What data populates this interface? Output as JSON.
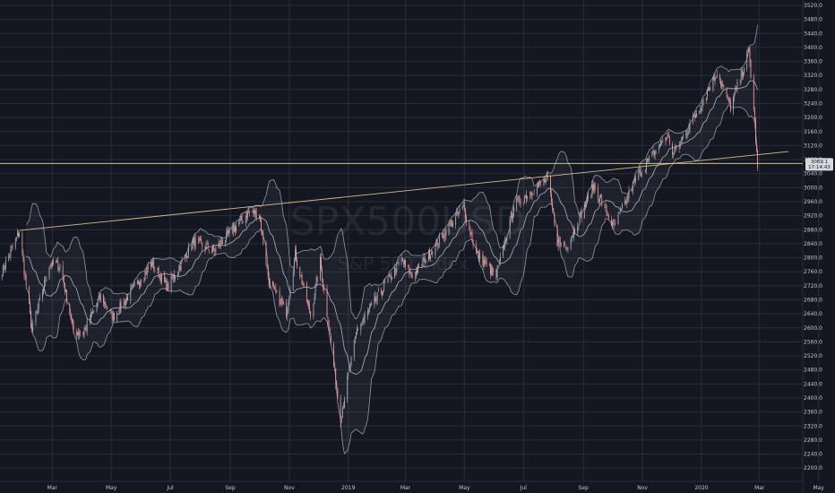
{
  "chart_data": {
    "type": "candlestick",
    "symbol_watermark": "SPX500USD",
    "description_watermark": "S&P 500 Index",
    "colors": {
      "background": "#131722",
      "grid": "#2a2e39",
      "candle_up": "#b0b3bb",
      "candle_down": "#ef9a9a",
      "bollinger": "#c8cad2",
      "trendline": "#d8b98a",
      "horizontal_line": "#e8d9a8",
      "axis_text": "#c3c6ce",
      "price_label_bg": "#d7d9de"
    },
    "ylim": [
      2180,
      3520
    ],
    "y_ticks": [
      "3520.0",
      "3480.0",
      "3440.0",
      "3400.0",
      "3360.0",
      "3320.0",
      "3280.0",
      "3240.0",
      "3200.0",
      "3160.0",
      "3120.0",
      "3080.0",
      "3040.0",
      "3000.0",
      "2960.0",
      "2920.0",
      "2880.0",
      "2840.0",
      "2800.0",
      "2760.0",
      "2720.0",
      "2680.0",
      "2640.0",
      "2600.0",
      "2560.0",
      "2520.0",
      "2480.0",
      "2440.0",
      "2400.0",
      "2360.0",
      "2320.0",
      "2280.0",
      "2240.0",
      "2200.0"
    ],
    "x_ticks": [
      {
        "label": "Mar",
        "date": "2018-03-01"
      },
      {
        "label": "May",
        "date": "2018-05-01"
      },
      {
        "label": "Jul",
        "date": "2018-07-01"
      },
      {
        "label": "Sep",
        "date": "2018-09-01"
      },
      {
        "label": "Nov",
        "date": "2018-11-01"
      },
      {
        "label": "2019",
        "date": "2019-01-01"
      },
      {
        "label": "Mar",
        "date": "2019-03-01"
      },
      {
        "label": "May",
        "date": "2019-05-01"
      },
      {
        "label": "Jul",
        "date": "2019-07-01"
      },
      {
        "label": "Sep",
        "date": "2019-09-01"
      },
      {
        "label": "Nov",
        "date": "2019-11-01"
      },
      {
        "label": "2020",
        "date": "2020-01-01"
      },
      {
        "label": "Mar",
        "date": "2020-03-01"
      },
      {
        "label": "May",
        "date": "2020-05-01"
      }
    ],
    "x_range": [
      "2018-01-06",
      "2020-05-18"
    ],
    "price_anchors": [
      [
        "2018-01-06",
        2745
      ],
      [
        "2018-01-26",
        2875
      ],
      [
        "2018-02-08",
        2590
      ],
      [
        "2018-02-26",
        2780
      ],
      [
        "2018-03-09",
        2780
      ],
      [
        "2018-03-23",
        2590
      ],
      [
        "2018-04-02",
        2585
      ],
      [
        "2018-04-20",
        2690
      ],
      [
        "2018-05-03",
        2630
      ],
      [
        "2018-06-12",
        2785
      ],
      [
        "2018-06-28",
        2715
      ],
      [
        "2018-07-25",
        2845
      ],
      [
        "2018-08-15",
        2820
      ],
      [
        "2018-09-20",
        2930
      ],
      [
        "2018-10-01",
        2925
      ],
      [
        "2018-10-11",
        2730
      ],
      [
        "2018-10-29",
        2645
      ],
      [
        "2018-11-07",
        2810
      ],
      [
        "2018-11-23",
        2635
      ],
      [
        "2018-12-03",
        2790
      ],
      [
        "2018-12-24",
        2345
      ],
      [
        "2019-01-10",
        2595
      ],
      [
        "2019-02-25",
        2795
      ],
      [
        "2019-03-08",
        2745
      ],
      [
        "2019-04-30",
        2945
      ],
      [
        "2019-05-13",
        2815
      ],
      [
        "2019-06-03",
        2745
      ],
      [
        "2019-06-21",
        2950
      ],
      [
        "2019-07-26",
        3025
      ],
      [
        "2019-08-05",
        2845
      ],
      [
        "2019-08-15",
        2835
      ],
      [
        "2019-09-12",
        3005
      ],
      [
        "2019-10-02",
        2885
      ],
      [
        "2019-10-28",
        3040
      ],
      [
        "2019-11-27",
        3150
      ],
      [
        "2019-12-03",
        3095
      ],
      [
        "2019-12-31",
        3235
      ],
      [
        "2020-01-17",
        3330
      ],
      [
        "2020-01-31",
        3230
      ],
      [
        "2020-02-19",
        3390
      ],
      [
        "2020-02-24",
        3220
      ],
      [
        "2020-02-28",
        3056
      ]
    ],
    "bollinger_bands": {
      "period": 20,
      "std_dev": 2
    },
    "trendline": [
      [
        "2018-01-26",
        2878
      ],
      [
        "2020-03-31",
        3103
      ]
    ],
    "horizontal_line": 3069,
    "last_price_label": [
      "3069.1",
      "17:14:43"
    ]
  }
}
